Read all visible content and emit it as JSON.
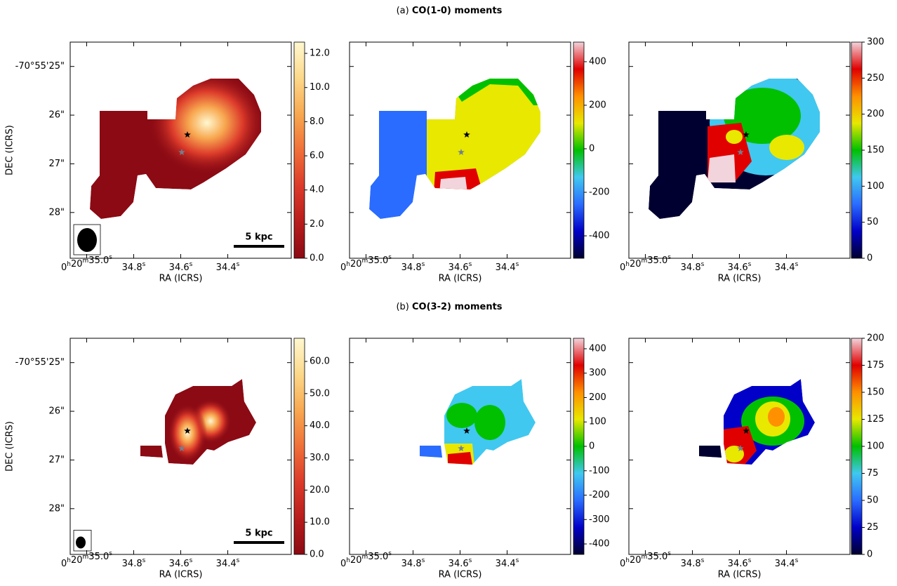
{
  "titles": [
    {
      "label": "(a)",
      "text": "CO(1-0) moments"
    },
    {
      "label": "(b)",
      "text": "CO(3-2) moments"
    }
  ],
  "chart_data": [
    {
      "type": "image",
      "xlim": [
        35.07,
        34.13
      ],
      "ylim": [
        28.94,
        24.5
      ],
      "xlabel": "RA (ICRS)",
      "ylabel": "DEC (ICRS)",
      "xticks": [
        {
          "value": 35.0,
          "label": "0h20m35.0s"
        },
        {
          "value": 34.8,
          "label": "34.8s"
        },
        {
          "value": 34.6,
          "label": "34.6s"
        },
        {
          "value": 34.4,
          "label": "34.4s"
        }
      ],
      "yticks": [
        {
          "value": 25,
          "label": "-70°55'25\""
        },
        {
          "value": 26,
          "label": "26\""
        },
        {
          "value": 27,
          "label": "27\""
        },
        {
          "value": 28,
          "label": "28\""
        }
      ],
      "clim": [
        0,
        12.66
      ],
      "cticks": [
        {
          "value": 0,
          "label": "0.0"
        },
        {
          "value": 2,
          "label": "2.0"
        },
        {
          "value": 4,
          "label": "4.0"
        },
        {
          "value": 6,
          "label": "6.0"
        },
        {
          "value": 8,
          "label": "8.0"
        },
        {
          "value": 10,
          "label": "10.0"
        },
        {
          "value": 12,
          "label": "12.0"
        }
      ],
      "cmap": [
        "#8b0a14",
        "#b81c1c",
        "#dc3a2a",
        "#f07038",
        "#f8a850",
        "#fcd88a",
        "#fff8d0"
      ],
      "scalebar": "5 kpc"
    },
    {
      "type": "image",
      "xlim": [
        35.07,
        34.13
      ],
      "ylim": [
        28.94,
        24.5
      ],
      "xlabel": "RA (ICRS)",
      "xticks": [
        {
          "value": 35.0,
          "label": "0h20m35.0s"
        },
        {
          "value": 34.8,
          "label": "34.8s"
        },
        {
          "value": 34.6,
          "label": "34.6s"
        },
        {
          "value": 34.4,
          "label": "34.4s"
        }
      ],
      "clim": [
        -503,
        490
      ],
      "cticks": [
        -400,
        -200,
        0,
        200,
        400
      ],
      "cmap": [
        "#000030",
        "#0000c8",
        "#2a6cff",
        "#40c8f0",
        "#00c000",
        "#e8e800",
        "#ff9000",
        "#e00000",
        "#f2d4dc"
      ]
    },
    {
      "type": "image",
      "xlim": [
        35.07,
        34.13
      ],
      "ylim": [
        28.94,
        24.5
      ],
      "xlabel": "RA (ICRS)",
      "xticks": [
        {
          "value": 35.0,
          "label": "0h20m35.0s"
        },
        {
          "value": 34.8,
          "label": "34.8s"
        },
        {
          "value": 34.6,
          "label": "34.6s"
        },
        {
          "value": 34.4,
          "label": "34.4s"
        }
      ],
      "clim": [
        0,
        300
      ],
      "cticks": [
        0,
        50,
        100,
        150,
        200,
        250,
        300
      ],
      "cmap": [
        "#000030",
        "#0000c8",
        "#2a6cff",
        "#40c8f0",
        "#00c000",
        "#e8e800",
        "#ff9000",
        "#e00000",
        "#f2d4dc"
      ]
    },
    {
      "type": "image",
      "xlim": [
        35.07,
        34.13
      ],
      "ylim": [
        28.94,
        24.5
      ],
      "xlabel": "RA (ICRS)",
      "ylabel": "DEC (ICRS)",
      "xticks": [
        {
          "value": 35.0,
          "label": "0h20m35.0s"
        },
        {
          "value": 34.8,
          "label": "34.8s"
        },
        {
          "value": 34.6,
          "label": "34.6s"
        },
        {
          "value": 34.4,
          "label": "34.4s"
        }
      ],
      "yticks": [
        {
          "value": 25,
          "label": "-70°55'25\""
        },
        {
          "value": 26,
          "label": "26\""
        },
        {
          "value": 27,
          "label": "27\""
        },
        {
          "value": 28,
          "label": "28\""
        }
      ],
      "clim": [
        0,
        67.2
      ],
      "cticks": [
        {
          "value": 0,
          "label": "0.0"
        },
        {
          "value": 10,
          "label": "10.0"
        },
        {
          "value": 20,
          "label": "20.0"
        },
        {
          "value": 30,
          "label": "30.0"
        },
        {
          "value": 40,
          "label": "40.0"
        },
        {
          "value": 50,
          "label": "50.0"
        },
        {
          "value": 60,
          "label": "60.0"
        }
      ],
      "cmap": [
        "#8b0a14",
        "#b81c1c",
        "#dc3a2a",
        "#f07038",
        "#f8a850",
        "#fcd88a",
        "#fff8d0"
      ],
      "scalebar": "5 kpc"
    },
    {
      "type": "image",
      "xlim": [
        35.07,
        34.13
      ],
      "ylim": [
        28.94,
        24.5
      ],
      "xlabel": "RA (ICRS)",
      "xticks": [
        {
          "value": 35.0,
          "label": "0h20m35.0s"
        },
        {
          "value": 34.8,
          "label": "34.8s"
        },
        {
          "value": 34.6,
          "label": "34.6s"
        },
        {
          "value": 34.4,
          "label": "34.4s"
        }
      ],
      "clim": [
        -443,
        443
      ],
      "cticks": [
        -400,
        -300,
        -200,
        -100,
        0,
        100,
        200,
        300,
        400
      ],
      "cmap": [
        "#000030",
        "#0000c8",
        "#2a6cff",
        "#40c8f0",
        "#00c000",
        "#e8e800",
        "#ff9000",
        "#e00000",
        "#f2d4dc"
      ]
    },
    {
      "type": "image",
      "xlim": [
        35.07,
        34.13
      ],
      "ylim": [
        28.94,
        24.5
      ],
      "xlabel": "RA (ICRS)",
      "xticks": [
        {
          "value": 35.0,
          "label": "0h20m35.0s"
        },
        {
          "value": 34.8,
          "label": "34.8s"
        },
        {
          "value": 34.6,
          "label": "34.6s"
        },
        {
          "value": 34.4,
          "label": "34.4s"
        }
      ],
      "clim": [
        0,
        200
      ],
      "cticks": [
        0,
        25,
        50,
        75,
        100,
        125,
        150,
        175,
        200
      ],
      "cmap": [
        "#000030",
        "#0000c8",
        "#2a6cff",
        "#40c8f0",
        "#00c000",
        "#e8e800",
        "#ff9000",
        "#e00000",
        "#f2d4dc"
      ]
    }
  ]
}
